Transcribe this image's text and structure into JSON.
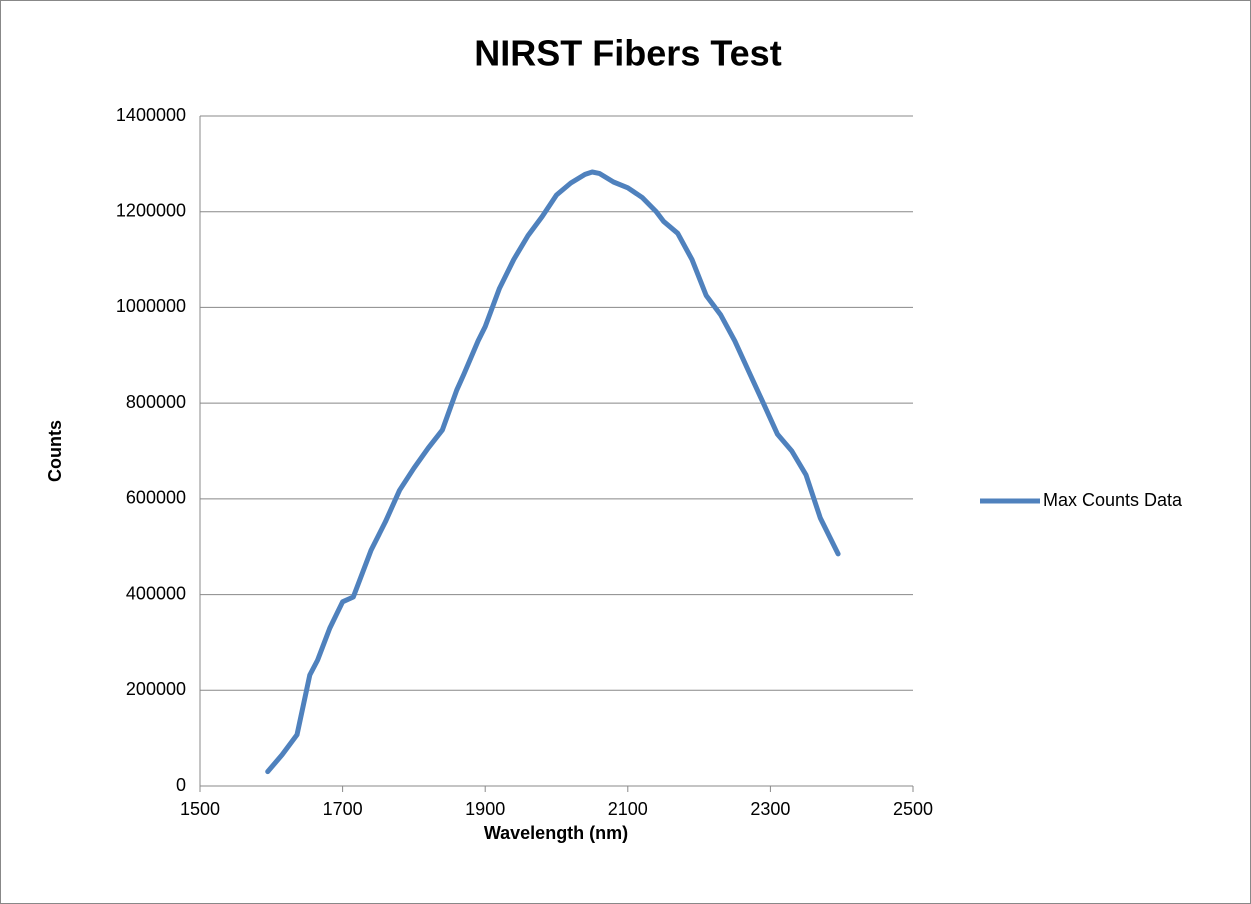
{
  "chart_data": {
    "type": "line",
    "title": "NIRST Fibers Test",
    "x_label": "Wavelength (nm)",
    "y_label": "Counts",
    "x": [
      1595,
      1615,
      1636,
      1654,
      1665,
      1682,
      1700,
      1715,
      1740,
      1760,
      1780,
      1800,
      1820,
      1840,
      1860,
      1870,
      1890,
      1900,
      1920,
      1940,
      1960,
      1980,
      2000,
      2020,
      2040,
      2050,
      2060,
      2080,
      2100,
      2120,
      2140,
      2150,
      2170,
      2190,
      2210,
      2230,
      2250,
      2270,
      2290,
      2310,
      2330,
      2350,
      2370,
      2395
    ],
    "series": [
      {
        "name": "Max Counts Data",
        "color": "#4f81bd",
        "values": [
          30000,
          65000,
          107000,
          232000,
          263000,
          330000,
          385000,
          395000,
          493000,
          552000,
          618000,
          664000,
          706000,
          744000,
          827000,
          860000,
          930000,
          960000,
          1040000,
          1100000,
          1150000,
          1190000,
          1235000,
          1260000,
          1278000,
          1283000,
          1280000,
          1262000,
          1250000,
          1230000,
          1200000,
          1180000,
          1155000,
          1100000,
          1025000,
          985000,
          930000,
          865000,
          800000,
          735000,
          700000,
          650000,
          560000,
          485000
        ]
      }
    ],
    "xlim": [
      1500,
      2500
    ],
    "xticks": [
      1500,
      1700,
      1900,
      2100,
      2300,
      2500
    ],
    "ylim": [
      0,
      1400000
    ],
    "yticks": [
      0,
      200000,
      400000,
      600000,
      800000,
      1000000,
      1200000,
      1400000
    ],
    "grid": true,
    "legend": "right"
  }
}
